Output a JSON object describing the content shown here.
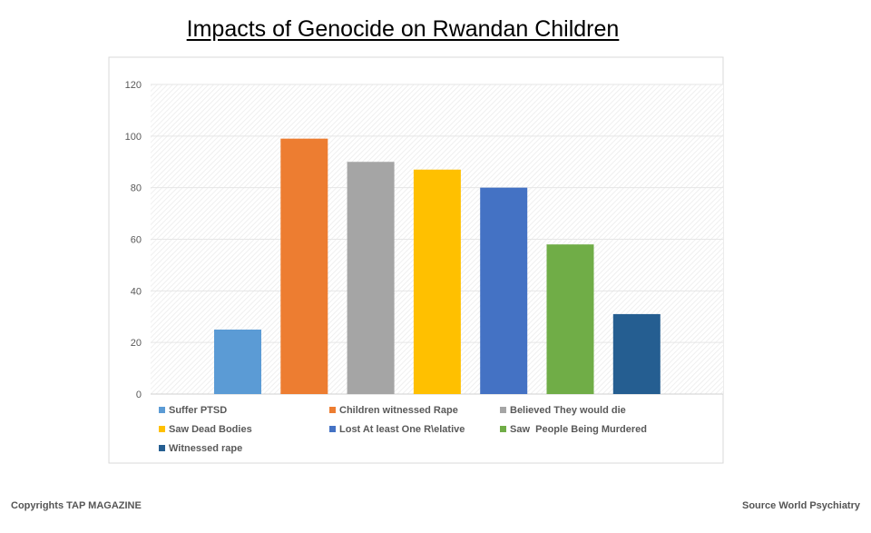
{
  "chart_data": {
    "type": "bar",
    "title": "Impacts of Genocide on Rwandan Children",
    "xlabel": "",
    "ylabel": "",
    "ylim": [
      0,
      120
    ],
    "yticks": [
      0,
      20,
      40,
      60,
      80,
      100,
      120
    ],
    "grid": true,
    "legend_position": "bottom",
    "series": [
      {
        "name": "Suffer PTSD",
        "value": 25,
        "color": "#5b9bd5"
      },
      {
        "name": "Children witnessed Rape",
        "value": 99,
        "color": "#ed7d31"
      },
      {
        "name": "Believed They would die",
        "value": 90,
        "color": "#a5a5a5"
      },
      {
        "name": "Saw Dead Bodies",
        "value": 87,
        "color": "#ffc000"
      },
      {
        "name": "Lost At least One R\\elative",
        "value": 80,
        "color": "#4472c4"
      },
      {
        "name": "Saw  People Being Murdered",
        "value": 58,
        "color": "#70ad47"
      },
      {
        "name": "Witnessed rape",
        "value": 31,
        "color": "#255e91"
      }
    ]
  },
  "footer": {
    "copyright": "Copyrights TAP  MAGAZINE",
    "source": "Source   World Psychiatry"
  }
}
